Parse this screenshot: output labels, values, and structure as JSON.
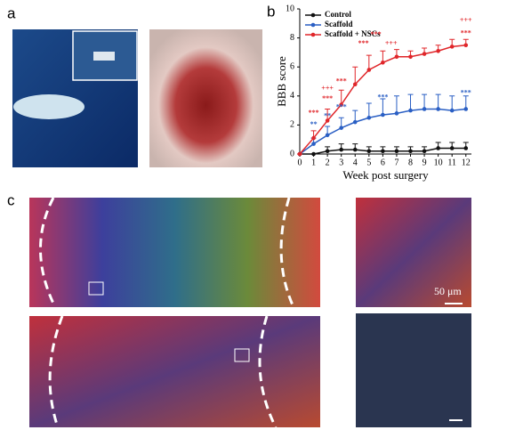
{
  "panels": {
    "a": "a",
    "b": "b",
    "c": "c"
  },
  "scale_bar": "50 μm",
  "chart_data": {
    "type": "line",
    "xlabel": "Week post surgery",
    "ylabel": "BBB score",
    "x": [
      0,
      1,
      2,
      3,
      4,
      5,
      6,
      7,
      8,
      9,
      10,
      11,
      12
    ],
    "xlim": [
      0,
      12.4
    ],
    "xticks": [
      0,
      1,
      2,
      3,
      4,
      5,
      6,
      7,
      8,
      9,
      10,
      11,
      12
    ],
    "ylim": [
      0,
      10
    ],
    "yticks": [
      0,
      2,
      4,
      6,
      8,
      10
    ],
    "legend": "upper left",
    "series": [
      {
        "name": "Control",
        "color": "#111111",
        "values": [
          0,
          0,
          0.2,
          0.3,
          0.3,
          0.2,
          0.2,
          0.2,
          0.2,
          0.2,
          0.4,
          0.4,
          0.4
        ],
        "errors": [
          0,
          0,
          0.3,
          0.4,
          0.4,
          0.3,
          0.3,
          0.3,
          0.3,
          0.3,
          0.4,
          0.4,
          0.4
        ]
      },
      {
        "name": "Scaffold",
        "color": "#2a5fc4",
        "values": [
          0,
          0.7,
          1.3,
          1.8,
          2.2,
          2.5,
          2.7,
          2.8,
          3.0,
          3.1,
          3.1,
          3.0,
          3.1
        ],
        "errors": [
          0,
          0.4,
          0.6,
          0.7,
          0.8,
          1.0,
          1.1,
          1.2,
          1.1,
          1.0,
          1.0,
          1.0,
          0.9
        ]
      },
      {
        "name": "Scaffold + NSCs",
        "color": "#e0262a",
        "values": [
          0,
          1.1,
          2.3,
          3.4,
          4.8,
          5.8,
          6.3,
          6.7,
          6.7,
          6.9,
          7.1,
          7.4,
          7.5
        ],
        "errors": [
          0,
          0.5,
          0.8,
          1.0,
          1.2,
          1.0,
          0.8,
          0.5,
          0.4,
          0.4,
          0.4,
          0.5,
          0.4
        ]
      }
    ],
    "annotations": [
      "**",
      "**",
      "***",
      "***",
      "+++",
      "***",
      "***",
      "***",
      "***",
      "***",
      "+++",
      "***",
      "***",
      "+++"
    ]
  }
}
